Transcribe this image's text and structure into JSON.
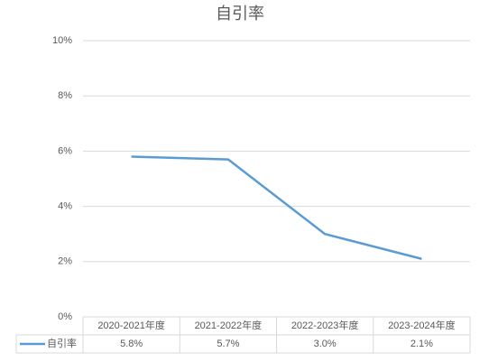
{
  "chart_data": {
    "type": "line",
    "title": "自引率",
    "categories": [
      "2020-2021年度",
      "2021-2022年度",
      "2022-2023年度",
      "2023-2024年度"
    ],
    "series": [
      {
        "name": "自引率",
        "color": "#5b9bd5",
        "values": [
          5.8,
          5.7,
          3.0,
          2.1
        ],
        "value_labels": [
          "5.8%",
          "5.7%",
          "3.0%",
          "2.1%"
        ]
      }
    ],
    "ylim": [
      0,
      10
    ],
    "yticks": [
      {
        "value": 0,
        "label": "0%"
      },
      {
        "value": 2,
        "label": "2%"
      },
      {
        "value": 4,
        "label": "4%"
      },
      {
        "value": 6,
        "label": "6%"
      },
      {
        "value": 8,
        "label": "8%"
      },
      {
        "value": 10,
        "label": "10%"
      }
    ],
    "grid": true
  }
}
